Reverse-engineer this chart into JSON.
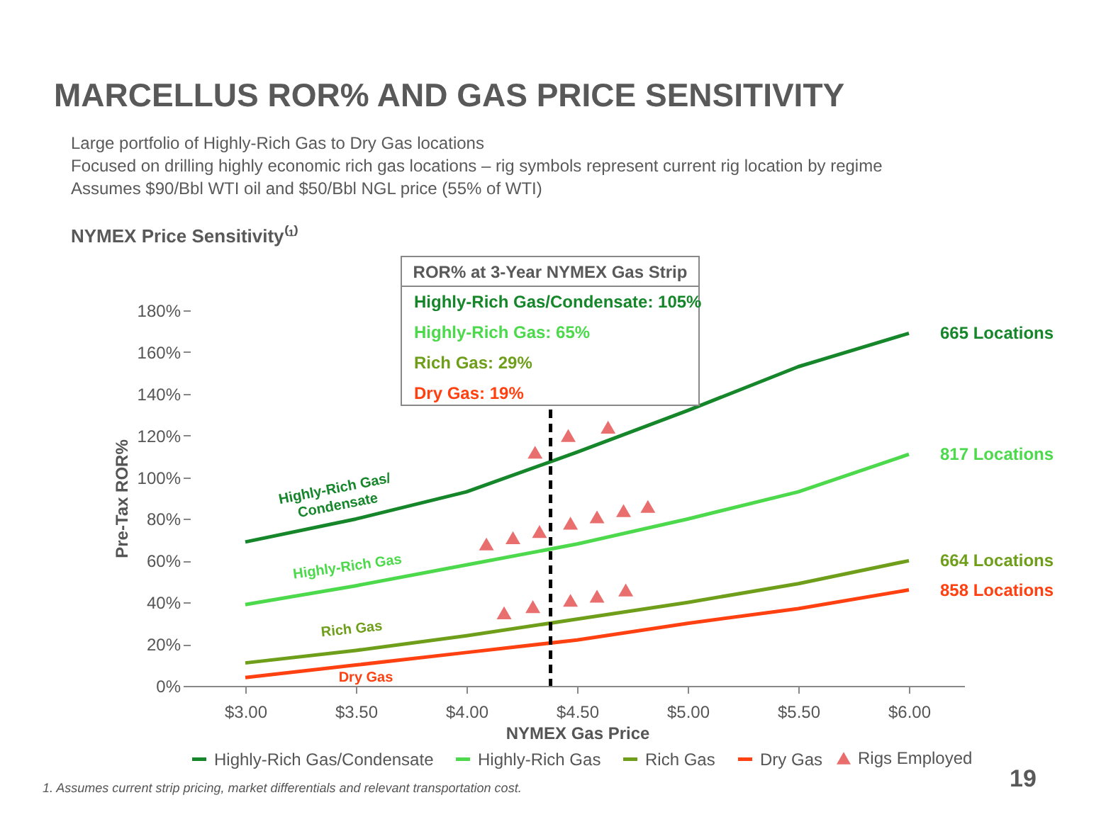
{
  "chart_data": {
    "type": "line",
    "title": "MARCELLUS ROR% AND GAS PRICE SENSITIVITY",
    "xlabel": "NYMEX Gas Price",
    "ylabel": "Pre-Tax ROR%",
    "xlim": [
      2.75,
      6.25
    ],
    "ylim": [
      0,
      180
    ],
    "xticks": [
      {
        "value": 3,
        "label": "$3.00"
      },
      {
        "value": 3.5,
        "label": "$3.50"
      },
      {
        "value": 4,
        "label": "$4.00"
      },
      {
        "value": 4.5,
        "label": "$4.50"
      },
      {
        "value": 5,
        "label": "$5.00"
      },
      {
        "value": 5.5,
        "label": "$5.50"
      },
      {
        "value": 6,
        "label": "$6.00"
      }
    ],
    "yticks": [
      {
        "value": 0,
        "label": "0%"
      },
      {
        "value": 20,
        "label": "20%"
      },
      {
        "value": 40,
        "label": "40%"
      },
      {
        "value": 60,
        "label": "60%"
      },
      {
        "value": 80,
        "label": "80%"
      },
      {
        "value": 100,
        "label": "100%"
      },
      {
        "value": 120,
        "label": "120%"
      },
      {
        "value": 140,
        "label": "140%"
      },
      {
        "value": 160,
        "label": "160%"
      },
      {
        "value": 180,
        "label": "180%"
      }
    ],
    "grid": false,
    "legend": "bottom",
    "line_style": "solid",
    "marker": "none",
    "series": [
      {
        "name": "Highly-Rich Gas/Condensate",
        "color": "#16862a",
        "type": "line",
        "x": [
          3,
          3.5,
          4,
          4.5,
          5,
          5.5,
          6
        ],
        "values": [
          69,
          80,
          93,
          112,
          132,
          153,
          169
        ]
      },
      {
        "name": "Highly-Rich Gas",
        "color": "#4cd94c",
        "type": "line",
        "x": [
          3,
          3.5,
          4,
          4.5,
          5,
          5.5,
          6
        ],
        "values": [
          39,
          48,
          58,
          68,
          80,
          93,
          111
        ]
      },
      {
        "name": "Rich Gas",
        "color": "#6f9f1a",
        "type": "line",
        "x": [
          3,
          3.5,
          4,
          4.5,
          5,
          5.5,
          6
        ],
        "values": [
          11,
          17,
          24,
          32,
          40,
          49,
          60
        ]
      },
      {
        "name": "Dry Gas",
        "color": "#ff4010",
        "type": "line",
        "x": [
          3,
          3.5,
          4,
          4.5,
          5,
          5.5,
          6
        ],
        "values": [
          4,
          10,
          16,
          22,
          30,
          37,
          46
        ]
      },
      {
        "name": "Rigs Employed",
        "color": "#e03030",
        "type": "scatter",
        "marker": "triangle",
        "x": [
          4.31,
          4.46,
          4.64,
          4.09,
          4.21,
          4.33,
          4.47,
          4.59,
          4.71,
          4.82,
          4.17,
          4.3,
          4.47,
          4.59,
          4.72
        ],
        "values": [
          112,
          120,
          124,
          68,
          71,
          74,
          78,
          81,
          84,
          86,
          35,
          38,
          41,
          43,
          46
        ]
      }
    ],
    "ref_lines": [
      {
        "axis": "x",
        "value": 4.38,
        "color": "#000000",
        "line_style": "dashed"
      }
    ],
    "annotations": [
      "Large portfolio of Highly-Rich Gas to Dry Gas locations",
      "Focused on drilling highly economic rich gas locations – rig symbols represent current rig location by regime",
      "Assumes $90/Bbl WTI oil and $50/Bbl NGL price (55% of WTI)",
      "NYMEX Price Sensitivity⁽¹⁾",
      "ROR% at 3-Year NYMEX Gas Strip",
      "Highly-Rich Gas/Condensate: 105%",
      "Highly-Rich Gas: 65%",
      "Rich Gas: 29%",
      "Dry Gas: 19%",
      "665 Locations",
      "817 Locations",
      "664 Locations",
      "858 Locations",
      "Highly-Rich Gas/\nCondensate",
      "Highly-Rich Gas",
      "Rich Gas",
      "Dry Gas",
      "1.  Assumes current strip pricing, market differentials and relevant transportation cost.",
      "19"
    ]
  }
}
